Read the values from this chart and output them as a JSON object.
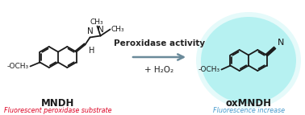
{
  "bg_color": "#ffffff",
  "glow_color": "#7ee8e8",
  "glow_alpha": 0.45,
  "arrow_color": "#6a8a9a",
  "arrow_text1": "Peroxidase activity",
  "arrow_text2": "+ H₂O₂",
  "label_left": "MNDH",
  "label_left_sub": "Fluorescent peroxidase substrate",
  "label_left_sub_color": "#dd0022",
  "label_right": "oxMNDH",
  "label_right_sub": "Fluorescence increase",
  "label_right_sub_color": "#4499cc",
  "bond_color": "#1a1a1a",
  "bond_lw": 1.3,
  "fig_width": 3.78,
  "fig_height": 1.43,
  "dpi": 100
}
